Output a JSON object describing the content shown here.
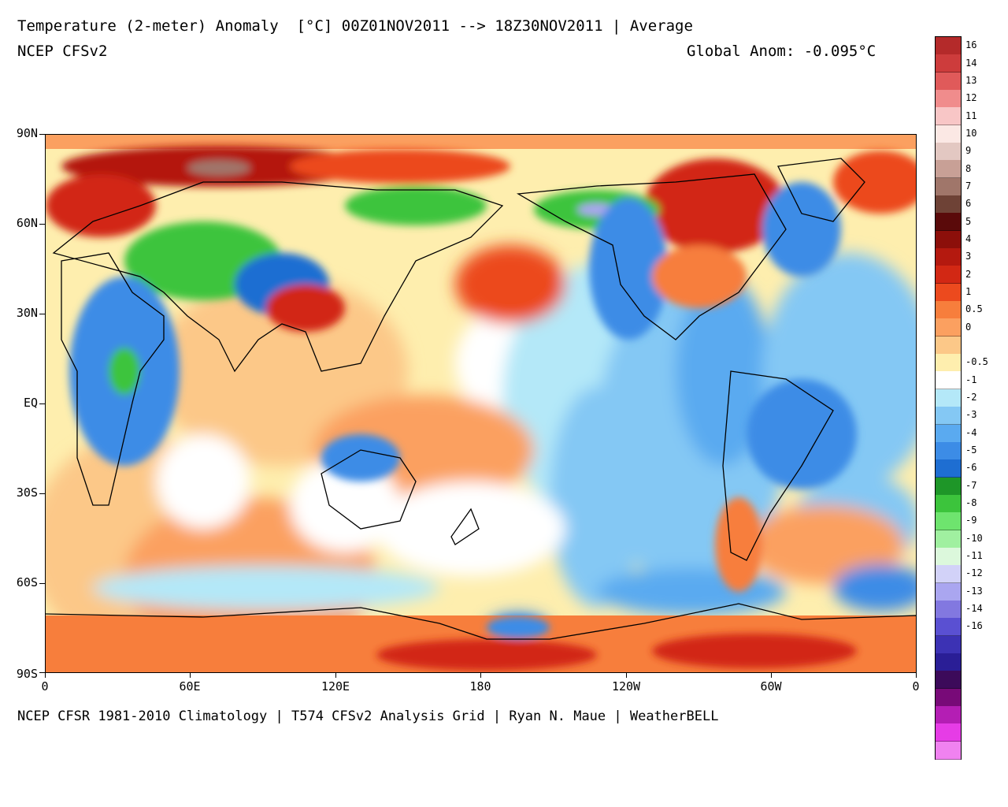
{
  "header": {
    "title": "Temperature (2-meter) Anomaly  [°C] 00Z01NOV2011 --> 18Z30NOV2011 | Average",
    "model": "NCEP CFSv2",
    "global_anomaly": "Global Anom: -0.095°C"
  },
  "footer": {
    "credit": "NCEP CFSR 1981-2010 Climatology | T574 CFSv2 Analysis Grid | Ryan N. Maue | WeatherBELL"
  },
  "axes": {
    "lat_labels": [
      "90N",
      "60N",
      "30N",
      "EQ",
      "30S",
      "60S",
      "90S"
    ],
    "lon_labels": [
      "0",
      "60E",
      "120E",
      "180",
      "120W",
      "60W",
      "0"
    ]
  },
  "map": {
    "projection": "equirectangular",
    "center_longitude": 180,
    "lat_range": [
      -90,
      90
    ],
    "lon_range": [
      0,
      360
    ]
  },
  "colorbar": {
    "unit": "°C",
    "levels": [
      {
        "label": "16",
        "color": "#b42a2a"
      },
      {
        "label": "14",
        "color": "#cd3c3c"
      },
      {
        "label": "13",
        "color": "#e05a5a"
      },
      {
        "label": "12",
        "color": "#f08c8c"
      },
      {
        "label": "11",
        "color": "#f8c6c6"
      },
      {
        "label": "10",
        "color": "#fbe8e4"
      },
      {
        "label": "9",
        "color": "#e3c8c2"
      },
      {
        "label": "8",
        "color": "#c8a096"
      },
      {
        "label": "7",
        "color": "#a0766a"
      },
      {
        "label": "6",
        "color": "#6e4236"
      },
      {
        "label": "5",
        "color": "#5a0a0a"
      },
      {
        "label": "4",
        "color": "#8c0f0a"
      },
      {
        "label": "3",
        "color": "#b4190f"
      },
      {
        "label": "2",
        "color": "#d22814"
      },
      {
        "label": "1",
        "color": "#ec4a1e"
      },
      {
        "label": "0.5",
        "color": "#f77e3c"
      },
      {
        "label": "0",
        "color": "#fba060"
      },
      {
        "label": "",
        "color": "#fcc888"
      },
      {
        "label": "-0.5",
        "color": "#feeeae"
      },
      {
        "label": "-1",
        "color": "#ffffff"
      },
      {
        "label": "-2",
        "color": "#b4e8f8"
      },
      {
        "label": "-3",
        "color": "#84c8f4"
      },
      {
        "label": "-4",
        "color": "#5aaaf0"
      },
      {
        "label": "-5",
        "color": "#3c8ce6"
      },
      {
        "label": "-6",
        "color": "#1e6ed2"
      },
      {
        "label": "-7",
        "color": "#1e9628"
      },
      {
        "label": "-8",
        "color": "#3cc43c"
      },
      {
        "label": "-9",
        "color": "#6ee46e"
      },
      {
        "label": "-10",
        "color": "#a0f0a0"
      },
      {
        "label": "-11",
        "color": "#dcf8dc"
      },
      {
        "label": "-12",
        "color": "#d2d2f8"
      },
      {
        "label": "-13",
        "color": "#aaa6f0"
      },
      {
        "label": "-14",
        "color": "#8278e0"
      },
      {
        "label": "-16",
        "color": "#5a50d2"
      },
      {
        "label": "",
        "color": "#3c32b4"
      },
      {
        "label": "",
        "color": "#2a1e96"
      },
      {
        "label": "",
        "color": "#3c0a5a"
      },
      {
        "label": "",
        "color": "#780a78"
      },
      {
        "label": "",
        "color": "#b41eb4"
      },
      {
        "label": "",
        "color": "#e63ce6"
      },
      {
        "label": "",
        "color": "#f082f0"
      }
    ]
  }
}
